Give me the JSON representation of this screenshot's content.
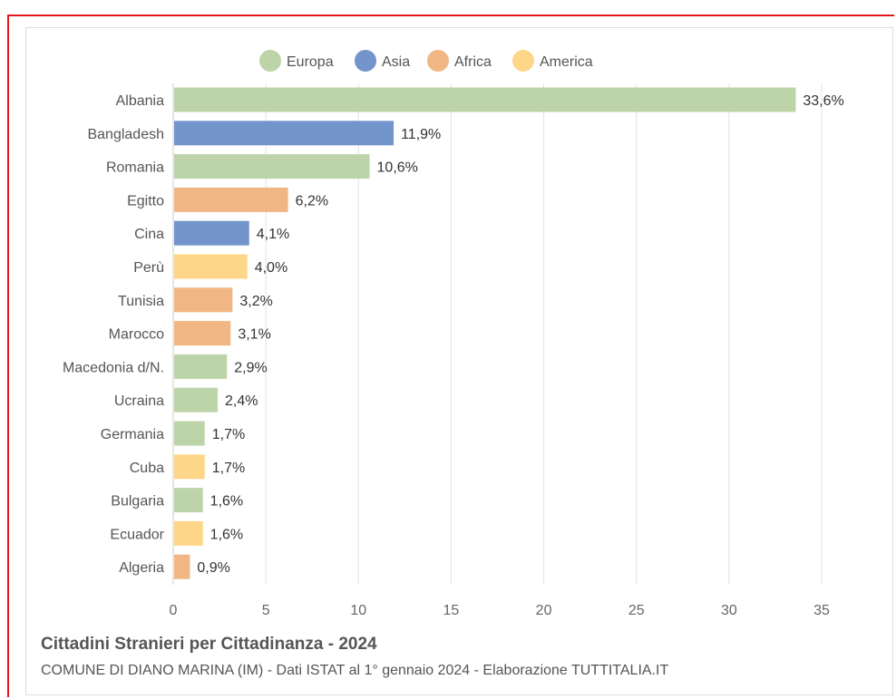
{
  "colors": {
    "Europa": "#bdd4a9",
    "Asia": "#7494cc",
    "Africa": "#f0b785",
    "America": "#fdd68a"
  },
  "legend": [
    "Europa",
    "Asia",
    "Africa",
    "America"
  ],
  "chart_data": {
    "type": "bar",
    "orientation": "horizontal",
    "title": "Cittadini Stranieri per Cittadinanza - 2024",
    "subtitle": "COMUNE DI DIANO MARINA (IM) - Dati ISTAT al 1° gennaio 2024 - Elaborazione TUTTITALIA.IT",
    "xlim": [
      0,
      35
    ],
    "xticks": [
      0,
      5,
      10,
      15,
      20,
      25,
      30,
      35
    ],
    "grid": true,
    "legend_position": "top",
    "categories": [
      "Albania",
      "Bangladesh",
      "Romania",
      "Egitto",
      "Cina",
      "Perù",
      "Tunisia",
      "Marocco",
      "Macedonia d/N.",
      "Ucraina",
      "Germania",
      "Cuba",
      "Bulgaria",
      "Ecuador",
      "Algeria"
    ],
    "values": [
      33.6,
      11.9,
      10.6,
      6.2,
      4.1,
      4.0,
      3.2,
      3.1,
      2.9,
      2.4,
      1.7,
      1.7,
      1.6,
      1.6,
      0.9
    ],
    "value_labels": [
      "33,6%",
      "11,9%",
      "10,6%",
      "6,2%",
      "4,1%",
      "4,0%",
      "3,2%",
      "3,1%",
      "2,9%",
      "2,4%",
      "1,7%",
      "1,7%",
      "1,6%",
      "1,6%",
      "0,9%"
    ],
    "groups": [
      "Europa",
      "Asia",
      "Europa",
      "Africa",
      "Asia",
      "America",
      "Africa",
      "Africa",
      "Europa",
      "Europa",
      "Europa",
      "America",
      "Europa",
      "America",
      "Africa"
    ]
  }
}
